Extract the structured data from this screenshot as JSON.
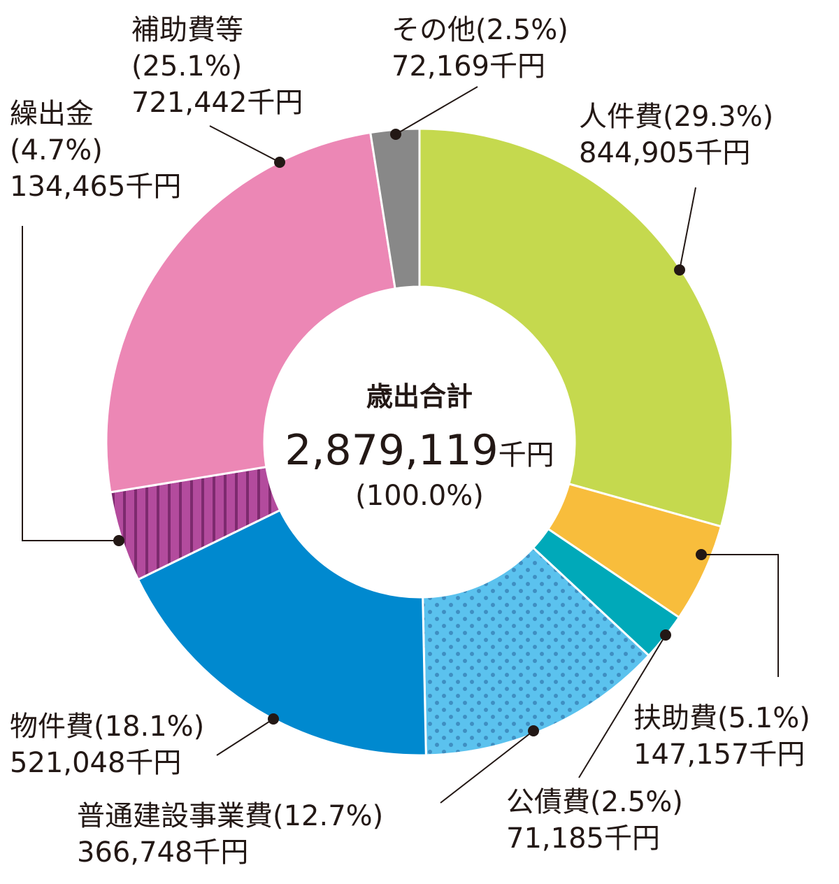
{
  "chart_data": {
    "type": "pie",
    "center": {
      "title": "歳出合計",
      "total": "2,879,119",
      "unit": "千円",
      "percent": "(100.0%)"
    },
    "slices": [
      {
        "key": "jinken",
        "name": "人件費",
        "percent": 29.3,
        "percent_label": "(29.3%)",
        "value": 844905,
        "value_label": "844,905千円",
        "color": "#c5d94e"
      },
      {
        "key": "fujo",
        "name": "扶助費",
        "percent": 5.1,
        "percent_label": "(5.1%)",
        "value": 147157,
        "value_label": "147,157千円",
        "color": "#f8bd3c"
      },
      {
        "key": "kosai",
        "name": "公債費",
        "percent": 2.5,
        "percent_label": "(2.5%)",
        "value": 71185,
        "value_label": "71,185千円",
        "color": "#00a9b9"
      },
      {
        "key": "futsu",
        "name": "普通建設事業費",
        "percent": 12.7,
        "percent_label": "(12.7%)",
        "value": 366748,
        "value_label": "366,748千円",
        "color": "#5bc2ee",
        "pattern": "dots"
      },
      {
        "key": "butsuken",
        "name": "物件費",
        "percent": 18.1,
        "percent_label": "(18.1%)",
        "value": 521048,
        "value_label": "521,048千円",
        "color": "#0089cf"
      },
      {
        "key": "kuridashi",
        "name": "繰出金",
        "percent": 4.7,
        "percent_label": "(4.7%)",
        "value": 134465,
        "value_label": "134,465千円",
        "color": "#b34b9d",
        "pattern": "stripes"
      },
      {
        "key": "hojo",
        "name": "補助費等",
        "percent": 25.1,
        "percent_label": "(25.1%)",
        "value": 721442,
        "value_label": "721,442千円",
        "color": "#ec87b5"
      },
      {
        "key": "sonota",
        "name": "その他",
        "percent": 2.5,
        "percent_label": "(2.5%)",
        "value": 72169,
        "value_label": "72,169千円",
        "color": "#888888"
      }
    ]
  }
}
